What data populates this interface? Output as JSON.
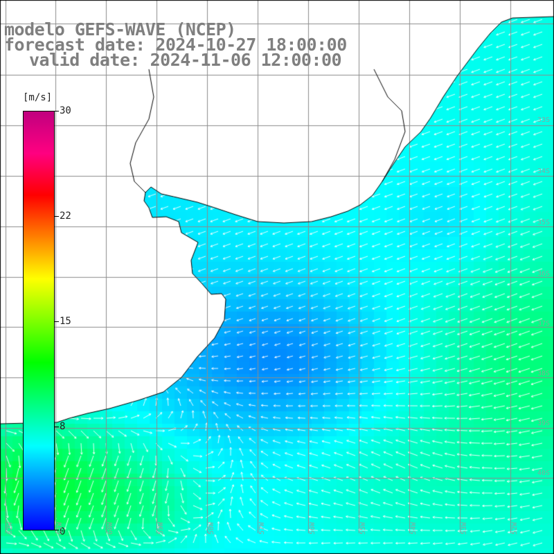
{
  "title": {
    "model": "modelo GEFS-WAVE (NCEP)",
    "forecast": "forecast date: 2024-10-27 18:00:00",
    "valid": "valid date: 2024-11-06 12:00:00"
  },
  "colorbar": {
    "unit": "[m/s]",
    "min": 0,
    "max": 30,
    "ticks": [
      "30",
      "22",
      "15",
      "8",
      "0"
    ],
    "tick_values": [
      30,
      22.5,
      15,
      7.5,
      0
    ],
    "colors": [
      "#0000ff",
      "#0080ff",
      "#00ffff",
      "#00ff80",
      "#00ff00",
      "#80ff00",
      "#ffff00",
      "#ff8000",
      "#ff0000",
      "#ff0080",
      "#c0007f"
    ]
  },
  "map": {
    "variable": "wind speed",
    "land_color": "#ffffff",
    "grid_color": "#8c8c8c",
    "coast_color": "#000000",
    "vector_color": "#ffffff",
    "lat_labels": [
      "33S",
      "34S",
      "35S",
      "36S",
      "37S",
      "38S",
      "39S",
      "40S"
    ],
    "lon_labels": [
      "62W",
      "61W",
      "60W",
      "59W",
      "58W",
      "57W",
      "56W",
      "55W",
      "54W",
      "53W",
      "52W"
    ]
  }
}
